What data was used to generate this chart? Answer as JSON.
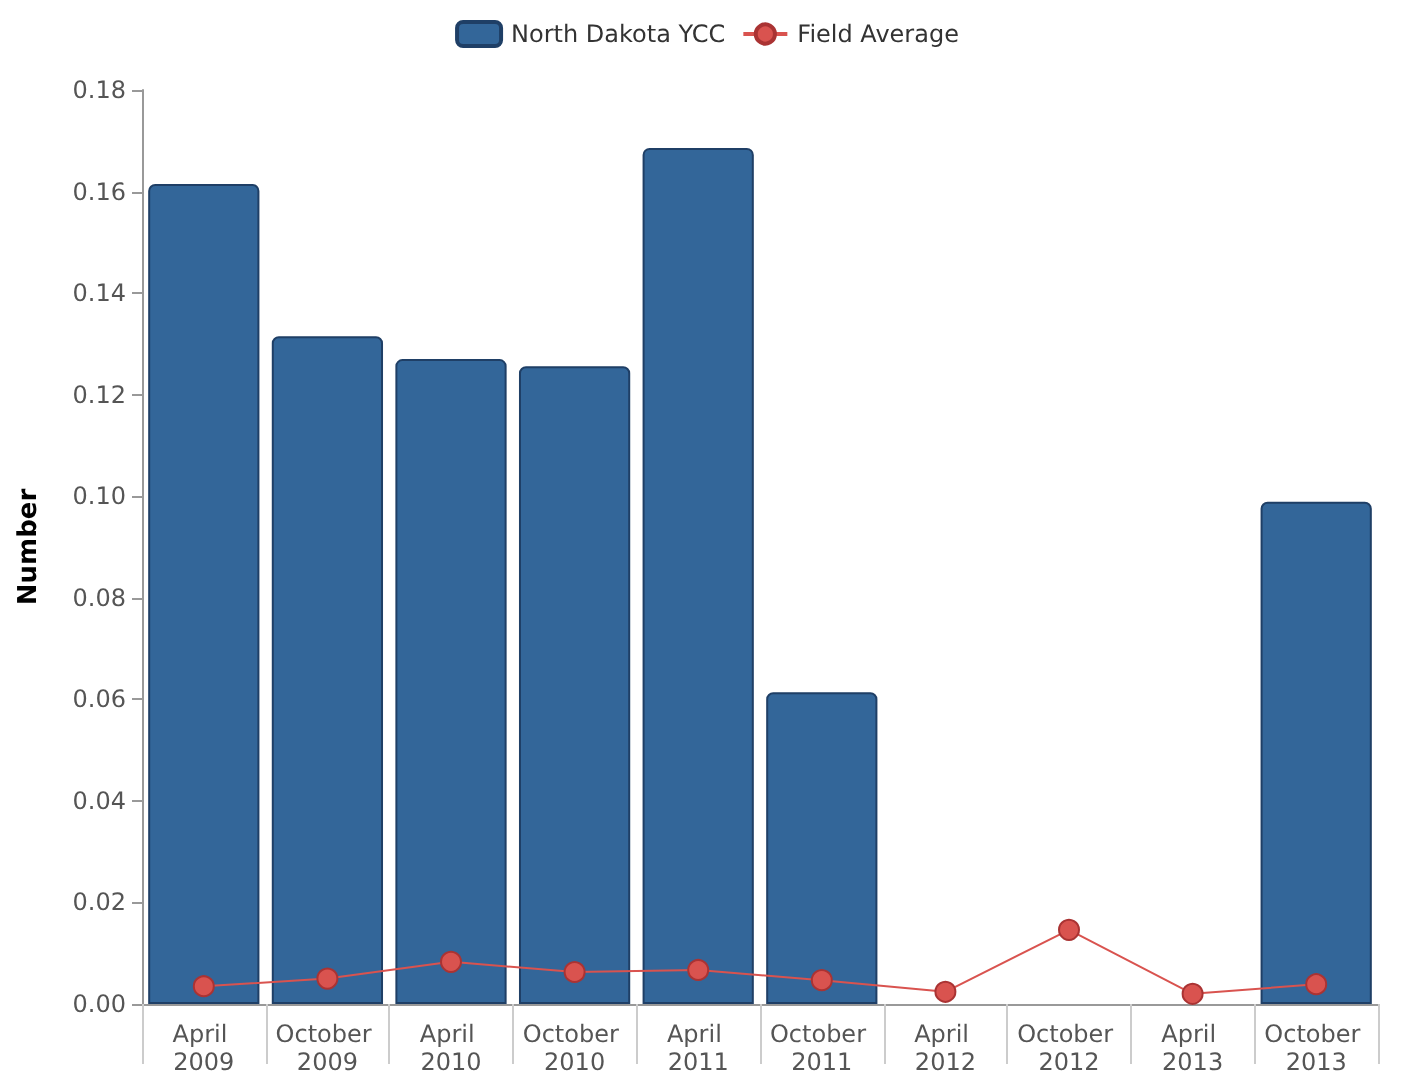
{
  "chart_data": {
    "type": "bar",
    "ylabel": "Number",
    "categories": [
      "April 2009",
      "October 2009",
      "April 2010",
      "October 2010",
      "April 2011",
      "October 2011",
      "April 2012",
      "October 2012",
      "April 2013",
      "October 2013"
    ],
    "series": [
      {
        "name": "North Dakota YCC",
        "color": "#336699",
        "values": [
          0.1615,
          0.1315,
          0.127,
          0.1256,
          0.1686,
          0.0614,
          null,
          null,
          null,
          0.0989
        ]
      },
      {
        "name": "Field Average",
        "type": "line",
        "color": "#d9534f",
        "values": [
          0.0035,
          0.005,
          0.0083,
          0.0063,
          0.0067,
          0.0047,
          0.0024,
          0.0146,
          0.002,
          0.0039
        ]
      }
    ],
    "ylim": [
      0,
      0.18
    ],
    "yticks": [
      {
        "value": 0,
        "label": "0.00"
      },
      0.02,
      0.04,
      0.06,
      0.08,
      {
        "value": 0.1,
        "label": "0.10"
      },
      0.12,
      0.14,
      0.16,
      0.18
    ],
    "grid": false,
    "legend": "top",
    "marker": "circle"
  }
}
